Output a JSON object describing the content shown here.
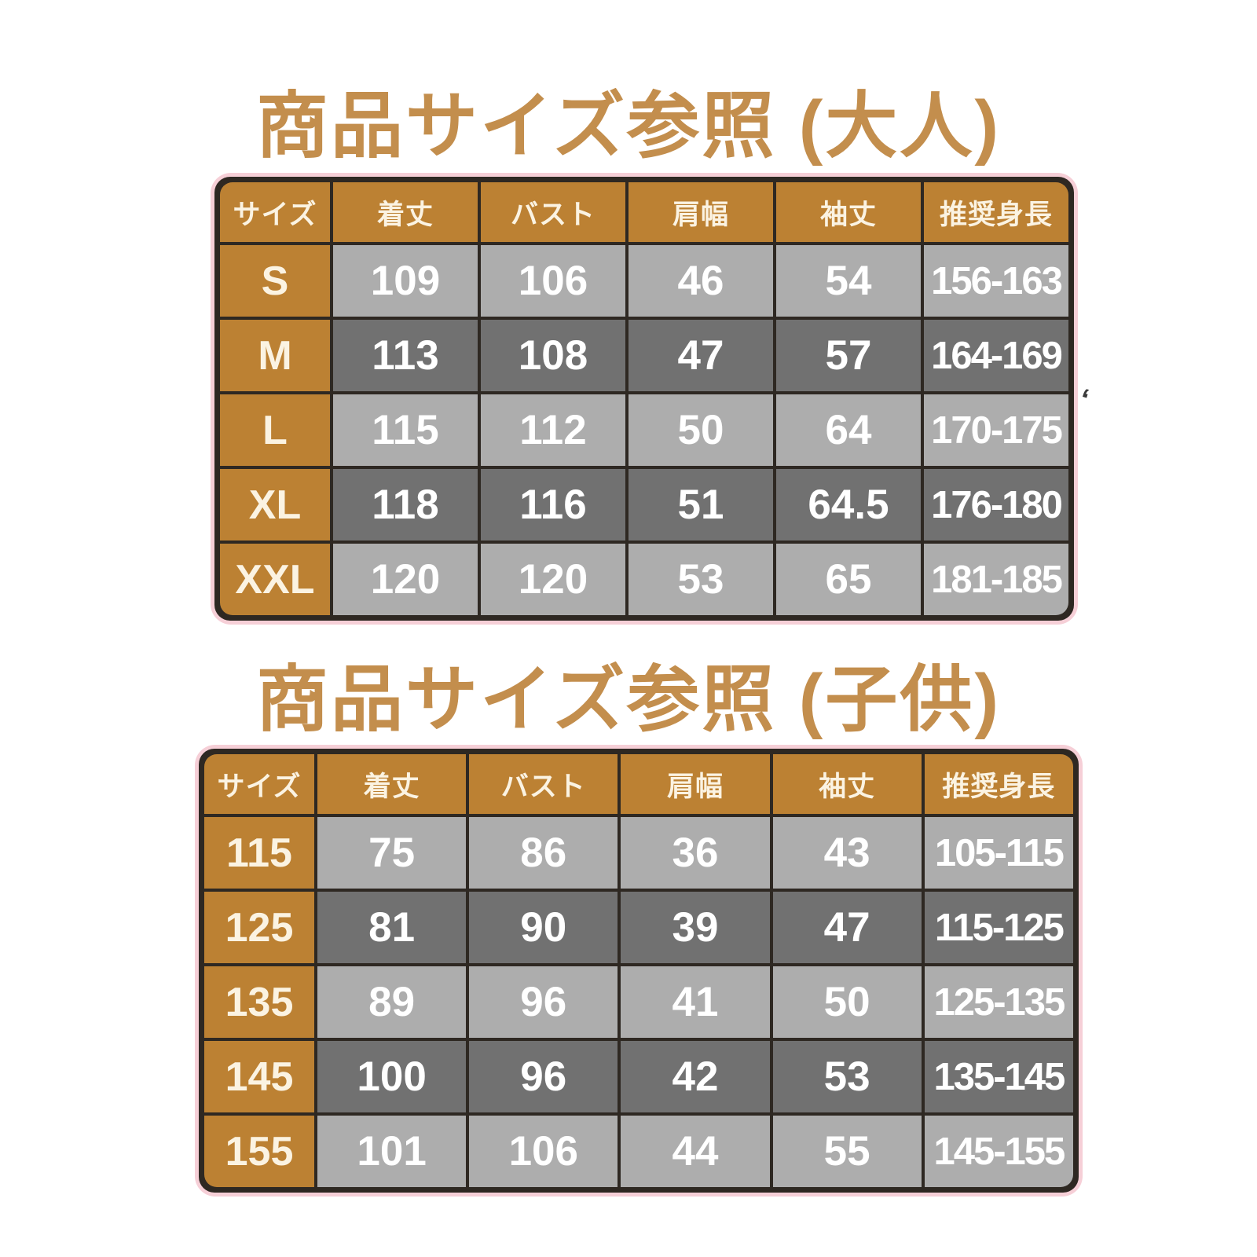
{
  "page": {
    "background": "#FFFFFF"
  },
  "colors": {
    "title_gold": "#C38E4D",
    "header_gold": "#BC8133",
    "row_light": "#ADADAD",
    "row_dark": "#717171",
    "grid": "#2E2822",
    "pink": "#F6CFD7",
    "gold_text": "#FBF3E2",
    "white_text": "#FFFFFF"
  },
  "chart_data": [
    {
      "type": "table",
      "title": "商品サイズ参照 (大人)",
      "columns": [
        "サイズ",
        "着丈",
        "バスト",
        "肩幅",
        "袖丈",
        "推奨身長"
      ],
      "rows": [
        [
          "S",
          "109",
          "106",
          "46",
          "54",
          "156-163"
        ],
        [
          "M",
          "113",
          "108",
          "47",
          "57",
          "164-169"
        ],
        [
          "L",
          "115",
          "112",
          "50",
          "64",
          "170-175"
        ],
        [
          "XL",
          "118",
          "116",
          "51",
          "64.5",
          "176-180"
        ],
        [
          "XXL",
          "120",
          "120",
          "53",
          "65",
          "181-185"
        ]
      ]
    },
    {
      "type": "table",
      "title": "商品サイズ参照 (子供)",
      "columns": [
        "サイズ",
        "着丈",
        "バスト",
        "肩幅",
        "袖丈",
        "推奨身長"
      ],
      "rows": [
        [
          "115",
          "75",
          "86",
          "36",
          "43",
          "105-115"
        ],
        [
          "125",
          "81",
          "90",
          "39",
          "47",
          "115-125"
        ],
        [
          "135",
          "89",
          "96",
          "41",
          "50",
          "125-135"
        ],
        [
          "145",
          "100",
          "96",
          "42",
          "53",
          "135-145"
        ],
        [
          "155",
          "101",
          "106",
          "44",
          "55",
          "145-155"
        ]
      ]
    }
  ],
  "decor": {
    "stray_mark": "‘"
  }
}
